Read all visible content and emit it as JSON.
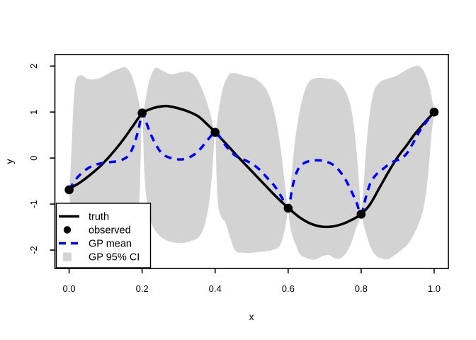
{
  "chart_data": {
    "type": "line",
    "title": "",
    "xlabel": "x",
    "ylabel": "y",
    "x_range": [
      -0.039,
      1.039
    ],
    "y_range": [
      -2.4,
      2.25
    ],
    "grid": false,
    "x_ticks": {
      "values": [
        0.0,
        0.2,
        0.4,
        0.6,
        0.8,
        1.0
      ],
      "labels": [
        "0.0",
        "0.2",
        "0.4",
        "0.6",
        "0.8",
        "1.0"
      ]
    },
    "y_ticks": {
      "values": [
        -2,
        -1,
        0,
        1,
        2
      ],
      "labels": [
        "-2",
        "-1",
        "0",
        "1",
        "2"
      ]
    },
    "colors": {
      "truth": "#000000",
      "observed": "#000000",
      "gp_mean": "#0000FF",
      "ci": "#D3D3D3",
      "axis": "#000000",
      "background": "#FFFFFF"
    },
    "legend": {
      "position": "bottom-left",
      "entries": [
        {
          "label": "truth",
          "type": "solid-line",
          "color": "#000000"
        },
        {
          "label": "observed",
          "type": "point",
          "color": "#000000"
        },
        {
          "label": "GP mean",
          "type": "dashed-line",
          "color": "#0000FF"
        },
        {
          "label": "GP 95% CI",
          "type": "fill",
          "color": "#D3D3D3"
        }
      ]
    },
    "series": {
      "observed": {
        "name": "observed",
        "points": [
          [
            0.0,
            -0.69
          ],
          [
            0.2,
            0.98
          ],
          [
            0.4,
            0.56
          ],
          [
            0.6,
            -1.09
          ],
          [
            0.8,
            -1.22
          ],
          [
            1.0,
            1.0
          ]
        ]
      },
      "truth": {
        "name": "truth",
        "points": [
          [
            0.0,
            -0.67
          ],
          [
            0.03,
            -0.53
          ],
          [
            0.06,
            -0.35
          ],
          [
            0.09,
            -0.14
          ],
          [
            0.12,
            0.12
          ],
          [
            0.15,
            0.42
          ],
          [
            0.175,
            0.7
          ],
          [
            0.2,
            0.97
          ],
          [
            0.225,
            1.07
          ],
          [
            0.25,
            1.12
          ],
          [
            0.27,
            1.13
          ],
          [
            0.3,
            1.08
          ],
          [
            0.33,
            1.0
          ],
          [
            0.355,
            0.9
          ],
          [
            0.38,
            0.72
          ],
          [
            0.4,
            0.56
          ],
          [
            0.43,
            0.31
          ],
          [
            0.46,
            0.05
          ],
          [
            0.49,
            -0.2
          ],
          [
            0.52,
            -0.45
          ],
          [
            0.55,
            -0.7
          ],
          [
            0.575,
            -0.9
          ],
          [
            0.6,
            -1.08
          ],
          [
            0.63,
            -1.28
          ],
          [
            0.66,
            -1.42
          ],
          [
            0.69,
            -1.49
          ],
          [
            0.72,
            -1.49
          ],
          [
            0.75,
            -1.43
          ],
          [
            0.775,
            -1.34
          ],
          [
            0.8,
            -1.22
          ],
          [
            0.825,
            -1.0
          ],
          [
            0.85,
            -0.65
          ],
          [
            0.875,
            -0.3
          ],
          [
            0.9,
            0.02
          ],
          [
            0.925,
            0.28
          ],
          [
            0.95,
            0.55
          ],
          [
            0.975,
            0.78
          ],
          [
            1.0,
            1.0
          ]
        ]
      },
      "gp_mean": {
        "name": "GP mean",
        "points": [
          [
            0.0,
            -0.69
          ],
          [
            0.015,
            -0.5
          ],
          [
            0.03,
            -0.36
          ],
          [
            0.05,
            -0.23
          ],
          [
            0.07,
            -0.15
          ],
          [
            0.09,
            -0.11
          ],
          [
            0.11,
            -0.09
          ],
          [
            0.13,
            -0.07
          ],
          [
            0.15,
            -0.02
          ],
          [
            0.165,
            0.08
          ],
          [
            0.178,
            0.3
          ],
          [
            0.19,
            0.62
          ],
          [
            0.2,
            0.97
          ],
          [
            0.21,
            0.8
          ],
          [
            0.222,
            0.55
          ],
          [
            0.235,
            0.33
          ],
          [
            0.25,
            0.14
          ],
          [
            0.265,
            0.04
          ],
          [
            0.285,
            -0.01
          ],
          [
            0.305,
            -0.03
          ],
          [
            0.325,
            0.0
          ],
          [
            0.345,
            0.09
          ],
          [
            0.362,
            0.22
          ],
          [
            0.38,
            0.4
          ],
          [
            0.4,
            0.56
          ],
          [
            0.412,
            0.47
          ],
          [
            0.428,
            0.28
          ],
          [
            0.445,
            0.12
          ],
          [
            0.462,
            0.02
          ],
          [
            0.48,
            -0.04
          ],
          [
            0.5,
            -0.12
          ],
          [
            0.52,
            -0.24
          ],
          [
            0.545,
            -0.45
          ],
          [
            0.565,
            -0.63
          ],
          [
            0.582,
            -0.85
          ],
          [
            0.6,
            -1.08
          ],
          [
            0.612,
            -0.62
          ],
          [
            0.625,
            -0.28
          ],
          [
            0.642,
            -0.12
          ],
          [
            0.662,
            -0.06
          ],
          [
            0.685,
            -0.05
          ],
          [
            0.705,
            -0.08
          ],
          [
            0.722,
            -0.14
          ],
          [
            0.74,
            -0.27
          ],
          [
            0.758,
            -0.48
          ],
          [
            0.775,
            -0.75
          ],
          [
            0.788,
            -0.98
          ],
          [
            0.8,
            -1.22
          ],
          [
            0.812,
            -0.88
          ],
          [
            0.825,
            -0.55
          ],
          [
            0.84,
            -0.37
          ],
          [
            0.855,
            -0.27
          ],
          [
            0.872,
            -0.16
          ],
          [
            0.89,
            -0.07
          ],
          [
            0.908,
            -0.02
          ],
          [
            0.925,
            0.1
          ],
          [
            0.942,
            0.32
          ],
          [
            0.96,
            0.58
          ],
          [
            0.978,
            0.78
          ],
          [
            1.0,
            1.0
          ]
        ]
      },
      "gp_ci": {
        "name": "GP 95% CI",
        "level": "95%",
        "upper": [
          [
            0.0,
            -0.69
          ],
          [
            0.004,
            -0.25
          ],
          [
            0.008,
            0.45
          ],
          [
            0.013,
            1.3
          ],
          [
            0.02,
            1.72
          ],
          [
            0.035,
            1.8
          ],
          [
            0.05,
            1.72
          ],
          [
            0.07,
            1.71
          ],
          [
            0.09,
            1.76
          ],
          [
            0.115,
            1.87
          ],
          [
            0.14,
            1.95
          ],
          [
            0.155,
            1.97
          ],
          [
            0.17,
            1.82
          ],
          [
            0.183,
            1.5
          ],
          [
            0.193,
            1.15
          ],
          [
            0.2,
            0.98
          ],
          [
            0.207,
            1.15
          ],
          [
            0.218,
            1.62
          ],
          [
            0.235,
            1.95
          ],
          [
            0.255,
            1.9
          ],
          [
            0.28,
            1.82
          ],
          [
            0.305,
            1.86
          ],
          [
            0.33,
            1.87
          ],
          [
            0.35,
            1.73
          ],
          [
            0.368,
            1.42
          ],
          [
            0.385,
            1.02
          ],
          [
            0.4,
            0.56
          ],
          [
            0.408,
            0.95
          ],
          [
            0.42,
            1.48
          ],
          [
            0.435,
            1.78
          ],
          [
            0.45,
            1.85
          ],
          [
            0.48,
            1.79
          ],
          [
            0.515,
            1.7
          ],
          [
            0.545,
            1.42
          ],
          [
            0.565,
            0.9
          ],
          [
            0.58,
            0.18
          ],
          [
            0.591,
            -0.55
          ],
          [
            0.6,
            -1.08
          ],
          [
            0.607,
            -0.6
          ],
          [
            0.617,
            0.25
          ],
          [
            0.63,
            0.95
          ],
          [
            0.645,
            1.45
          ],
          [
            0.66,
            1.68
          ],
          [
            0.68,
            1.74
          ],
          [
            0.705,
            1.73
          ],
          [
            0.73,
            1.69
          ],
          [
            0.752,
            1.52
          ],
          [
            0.768,
            1.22
          ],
          [
            0.78,
            0.72
          ],
          [
            0.79,
            -0.1
          ],
          [
            0.796,
            -0.75
          ],
          [
            0.8,
            -1.22
          ],
          [
            0.806,
            -0.68
          ],
          [
            0.813,
            0.12
          ],
          [
            0.822,
            0.88
          ],
          [
            0.835,
            1.45
          ],
          [
            0.852,
            1.65
          ],
          [
            0.87,
            1.72
          ],
          [
            0.895,
            1.78
          ],
          [
            0.92,
            1.9
          ],
          [
            0.945,
            1.99
          ],
          [
            0.958,
            2.0
          ],
          [
            0.972,
            1.88
          ],
          [
            0.985,
            1.62
          ],
          [
            0.993,
            1.35
          ],
          [
            1.0,
            1.0
          ]
        ],
        "lower": [
          [
            0.0,
            -0.69
          ],
          [
            0.004,
            -1.15
          ],
          [
            0.009,
            -1.6
          ],
          [
            0.016,
            -1.95
          ],
          [
            0.03,
            -2.08
          ],
          [
            0.05,
            -2.14
          ],
          [
            0.08,
            -2.17
          ],
          [
            0.105,
            -2.19
          ],
          [
            0.13,
            -2.15
          ],
          [
            0.15,
            -2.05
          ],
          [
            0.168,
            -1.9
          ],
          [
            0.183,
            -1.55
          ],
          [
            0.193,
            -0.8
          ],
          [
            0.2,
            0.98
          ],
          [
            0.206,
            -0.3
          ],
          [
            0.213,
            -0.95
          ],
          [
            0.222,
            -1.35
          ],
          [
            0.24,
            -1.62
          ],
          [
            0.262,
            -1.77
          ],
          [
            0.285,
            -1.83
          ],
          [
            0.31,
            -1.85
          ],
          [
            0.335,
            -1.8
          ],
          [
            0.355,
            -1.72
          ],
          [
            0.37,
            -1.48
          ],
          [
            0.383,
            -1.0
          ],
          [
            0.392,
            -0.3
          ],
          [
            0.4,
            0.56
          ],
          [
            0.404,
            -0.4
          ],
          [
            0.408,
            -1.02
          ],
          [
            0.418,
            -1.3
          ],
          [
            0.428,
            -1.4
          ],
          [
            0.442,
            -1.75
          ],
          [
            0.456,
            -2.02
          ],
          [
            0.478,
            -2.06
          ],
          [
            0.5,
            -2.06
          ],
          [
            0.522,
            -2.04
          ],
          [
            0.538,
            -2.03
          ],
          [
            0.56,
            -1.99
          ],
          [
            0.577,
            -1.91
          ],
          [
            0.588,
            -1.65
          ],
          [
            0.595,
            -1.38
          ],
          [
            0.6,
            -1.09
          ],
          [
            0.604,
            -1.4
          ],
          [
            0.612,
            -1.7
          ],
          [
            0.621,
            -1.88
          ],
          [
            0.632,
            -2.09
          ],
          [
            0.65,
            -2.17
          ],
          [
            0.672,
            -2.21
          ],
          [
            0.695,
            -2.13
          ],
          [
            0.712,
            -2.11
          ],
          [
            0.728,
            -2.18
          ],
          [
            0.743,
            -2.18
          ],
          [
            0.758,
            -2.07
          ],
          [
            0.772,
            -1.87
          ],
          [
            0.783,
            -1.6
          ],
          [
            0.792,
            -1.4
          ],
          [
            0.8,
            -1.22
          ],
          [
            0.806,
            -1.42
          ],
          [
            0.814,
            -1.65
          ],
          [
            0.824,
            -1.9
          ],
          [
            0.838,
            -2.1
          ],
          [
            0.855,
            -2.18
          ],
          [
            0.872,
            -2.2
          ],
          [
            0.89,
            -2.12
          ],
          [
            0.91,
            -2.0
          ],
          [
            0.928,
            -1.87
          ],
          [
            0.945,
            -1.65
          ],
          [
            0.96,
            -1.38
          ],
          [
            0.972,
            -1.05
          ],
          [
            0.981,
            -0.55
          ],
          [
            0.987,
            -0.05
          ],
          [
            0.992,
            0.45
          ],
          [
            1.0,
            1.0
          ]
        ]
      }
    }
  }
}
